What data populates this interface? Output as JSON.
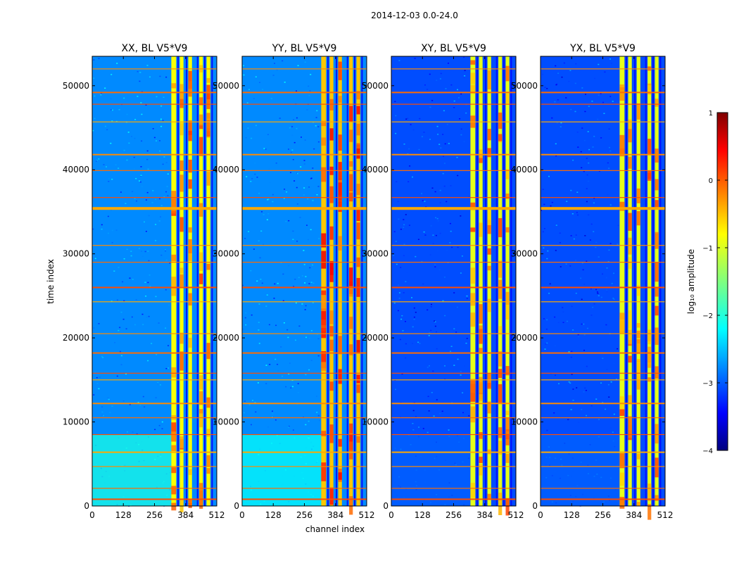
{
  "chart_data": {
    "type": "heatmap",
    "suptitle": "2014-12-03 0.0-24.0",
    "xlabel": "channel index",
    "ylabel": "time index",
    "xlim": [
      0,
      512
    ],
    "ylim": [
      0,
      53500
    ],
    "xticks": [
      0,
      128,
      256,
      384,
      512
    ],
    "yticks": [
      0,
      10000,
      20000,
      30000,
      40000,
      50000
    ],
    "colorbar": {
      "label": "log₁₀ amplitude",
      "range": [
        -4,
        1
      ],
      "ticks": [
        1,
        0,
        -1,
        -2,
        -3,
        -4
      ],
      "tick_labels": [
        "1",
        "0",
        "−1",
        "−2",
        "−3",
        "−4"
      ],
      "colormap": "jet"
    },
    "panels": [
      {
        "title": "XX, BL V5*V9",
        "base_level": -2.7,
        "band_level": -0.9,
        "low_time_level": -2.0
      },
      {
        "title": "YY, BL V5*V9",
        "base_level": -2.7,
        "band_level": -0.6,
        "low_time_level": -2.1
      },
      {
        "title": "XY, BL V5*V9",
        "base_level": -3.0,
        "band_level": -1.0,
        "low_time_level": -2.9
      },
      {
        "title": "YX, BL V5*V9",
        "base_level": -3.0,
        "band_level": -1.0,
        "low_time_level": -2.9
      }
    ],
    "bright_band_channels": [
      [
        325,
        345
      ],
      [
        360,
        375
      ],
      [
        395,
        410
      ],
      [
        440,
        455
      ],
      [
        470,
        485
      ]
    ],
    "rfi_time_rows": [
      800,
      2100,
      4700,
      6400,
      8500,
      10500,
      12200,
      15000,
      15800,
      18200,
      20500,
      24300,
      26000,
      29000,
      31000,
      35400,
      36700,
      39900,
      41800,
      45700,
      47800,
      49200,
      52000
    ]
  }
}
